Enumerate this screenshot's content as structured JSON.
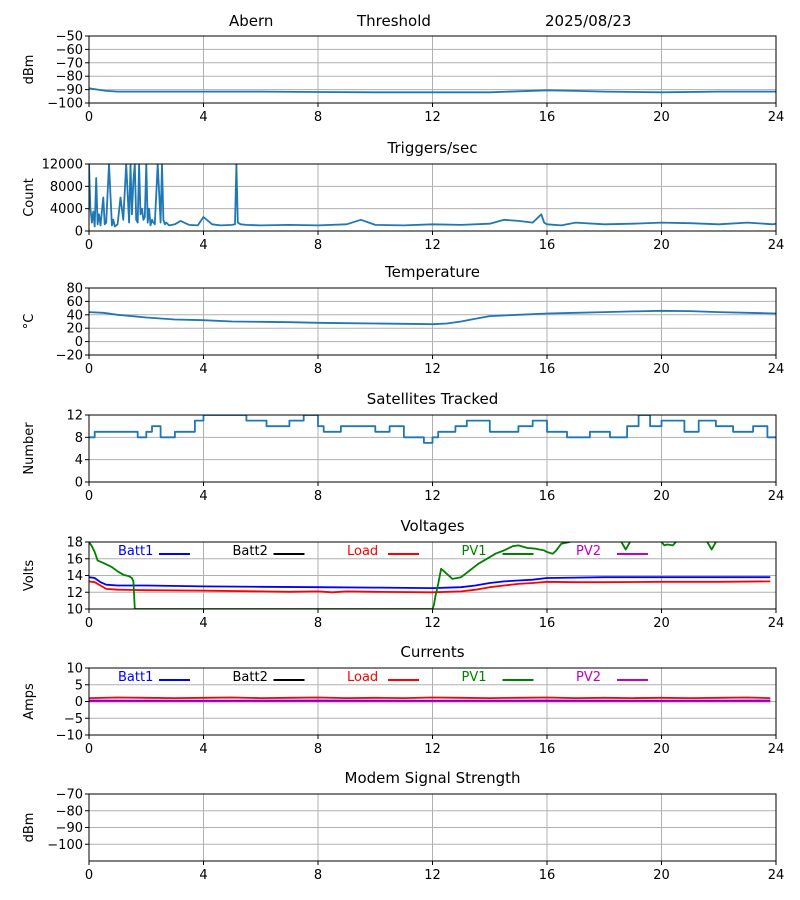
{
  "header": {
    "station": "Abern",
    "mode": "Threshold",
    "date": "2025/08/23"
  },
  "colors": {
    "series_default": "#1f77b4",
    "batt1": "#0000ff",
    "batt2": "#000000",
    "load": "#ff0000",
    "pv1": "#008000",
    "pv2": "#bf00bf",
    "grid": "#b0b0b0"
  },
  "chart_data": [
    {
      "id": "signal",
      "type": "line",
      "title": "",
      "ylabel": "dBm",
      "xlim": [
        0,
        24
      ],
      "xticks": [
        0,
        4,
        8,
        12,
        16,
        20,
        24
      ],
      "ylim": [
        -100,
        -50
      ],
      "yticks": [
        -100,
        -90,
        -80,
        -70,
        -60,
        -50
      ],
      "ytick_labels": [
        "−100",
        "−90",
        "−80",
        "−70",
        "−60",
        "−50"
      ],
      "series": [
        {
          "color_key": "series_default",
          "x": [
            0,
            0.3,
            0.6,
            1,
            2,
            3,
            4,
            6,
            8,
            10,
            12,
            14,
            16,
            17,
            18,
            20,
            22,
            24
          ],
          "y": [
            -89,
            -90,
            -91,
            -91.5,
            -91.5,
            -91.5,
            -91.5,
            -91.5,
            -91.8,
            -92,
            -92,
            -92,
            -90.5,
            -91,
            -91.5,
            -92,
            -91.5,
            -91.5
          ]
        }
      ]
    },
    {
      "id": "triggers",
      "type": "line",
      "title": "Triggers/sec",
      "ylabel": "Count",
      "xlim": [
        0,
        24
      ],
      "xticks": [
        0,
        4,
        8,
        12,
        16,
        20,
        24
      ],
      "ylim": [
        0,
        12000
      ],
      "yticks": [
        0,
        4000,
        8000,
        12000
      ],
      "ytick_labels": [
        "0",
        "4000",
        "8000",
        "12000"
      ],
      "series": [
        {
          "color_key": "series_default",
          "x": [
            0,
            0.05,
            0.1,
            0.15,
            0.2,
            0.25,
            0.3,
            0.35,
            0.4,
            0.5,
            0.55,
            0.6,
            0.7,
            0.8,
            0.85,
            0.9,
            1.0,
            1.1,
            1.2,
            1.3,
            1.4,
            1.45,
            1.5,
            1.55,
            1.6,
            1.65,
            1.7,
            1.75,
            1.8,
            1.85,
            1.9,
            1.95,
            2.0,
            2.05,
            2.1,
            2.15,
            2.2,
            2.25,
            2.3,
            2.4,
            2.5,
            2.55,
            2.6,
            2.65,
            2.7,
            2.8,
            3.0,
            3.2,
            3.5,
            3.8,
            4.0,
            4.3,
            4.6,
            5.0,
            5.1,
            5.15,
            5.2,
            5.3,
            5.5,
            6,
            7,
            8,
            9,
            9.5,
            10,
            11,
            12,
            13,
            14,
            14.5,
            15,
            15.5,
            15.8,
            15.9,
            16,
            16.5,
            17,
            18,
            19,
            20,
            21,
            22,
            23,
            23.9,
            24
          ],
          "y": [
            12000,
            4000,
            1500,
            3500,
            800,
            9500,
            1200,
            3000,
            1000,
            6000,
            1200,
            1500,
            12000,
            1000,
            2000,
            800,
            1200,
            6000,
            2000,
            12000,
            1500,
            12000,
            3000,
            9000,
            12000,
            2000,
            1500,
            12000,
            3000,
            4000,
            2000,
            2500,
            12000,
            1500,
            4000,
            1000,
            2000,
            1500,
            1200,
            12000,
            1500,
            12000,
            2000,
            1200,
            1500,
            1000,
            1200,
            1800,
            1100,
            1000,
            2500,
            1200,
            1000,
            1100,
            1200,
            12000,
            1500,
            1200,
            1100,
            1000,
            1100,
            1000,
            1200,
            2000,
            1100,
            1000,
            1200,
            1100,
            1300,
            2000,
            1800,
            1500,
            3000,
            1500,
            1200,
            1000,
            1500,
            1200,
            1300,
            1500,
            1400,
            1200,
            1500,
            1200,
            1300
          ]
        }
      ]
    },
    {
      "id": "temperature",
      "type": "line",
      "title": "Temperature",
      "ylabel": "°C",
      "xlim": [
        0,
        24
      ],
      "xticks": [
        0,
        4,
        8,
        12,
        16,
        20,
        24
      ],
      "ylim": [
        -20,
        80
      ],
      "yticks": [
        -20,
        0,
        20,
        40,
        60,
        80
      ],
      "ytick_labels": [
        "−20",
        "0",
        "20",
        "40",
        "60",
        "80"
      ],
      "series": [
        {
          "color_key": "series_default",
          "x": [
            0,
            0.5,
            1,
            2,
            3,
            4,
            5,
            6,
            7,
            8,
            9,
            10,
            11,
            12,
            12.5,
            13,
            13.5,
            14,
            15,
            16,
            17,
            18,
            19,
            20,
            21,
            22,
            23,
            24
          ],
          "y": [
            44,
            43,
            40,
            36,
            33,
            32,
            30,
            29.5,
            29,
            28,
            27.5,
            27,
            26.5,
            26,
            27,
            30,
            34,
            38,
            40,
            42,
            43,
            44,
            45,
            46,
            45.5,
            44,
            43,
            42
          ]
        }
      ]
    },
    {
      "id": "satellites",
      "type": "line",
      "title": "Satellites Tracked",
      "ylabel": "Number",
      "xlim": [
        0,
        24
      ],
      "xticks": [
        0,
        4,
        8,
        12,
        16,
        20,
        24
      ],
      "ylim": [
        0,
        12
      ],
      "yticks": [
        0,
        4,
        8,
        12
      ],
      "ytick_labels": [
        "0",
        "4",
        "8",
        "12"
      ],
      "series": [
        {
          "color_key": "series_default",
          "x": [
            0,
            0.2,
            0.2,
            1.7,
            1.7,
            2.0,
            2.0,
            2.2,
            2.2,
            2.5,
            2.5,
            3.0,
            3.0,
            3.7,
            3.7,
            4.0,
            4.0,
            5.5,
            5.5,
            6.2,
            6.2,
            7.0,
            7.0,
            7.5,
            7.5,
            8.0,
            8.0,
            8.2,
            8.2,
            8.8,
            8.8,
            10.0,
            10.0,
            10.5,
            10.5,
            11.0,
            11.0,
            11.7,
            11.7,
            12.0,
            12.0,
            12.2,
            12.2,
            12.8,
            12.8,
            13.2,
            13.2,
            14.0,
            14.0,
            15.0,
            15.0,
            15.5,
            15.5,
            16.0,
            16.0,
            16.7,
            16.7,
            17.5,
            17.5,
            18.2,
            18.2,
            18.8,
            18.8,
            19.2,
            19.2,
            19.6,
            19.6,
            20.0,
            20.0,
            20.8,
            20.8,
            21.3,
            21.3,
            21.9,
            21.9,
            22.5,
            22.5,
            23.2,
            23.2,
            23.7,
            23.7,
            24
          ],
          "y": [
            8,
            8,
            9,
            9,
            8,
            8,
            9,
            9,
            10,
            10,
            8,
            8,
            9,
            9,
            11,
            11,
            12,
            12,
            11,
            11,
            10,
            10,
            11,
            11,
            12,
            12,
            10,
            10,
            9,
            9,
            10,
            10,
            9,
            9,
            10,
            10,
            8,
            8,
            7,
            7,
            8,
            8,
            9,
            9,
            10,
            10,
            11,
            11,
            9,
            9,
            10,
            10,
            11,
            11,
            9,
            9,
            8,
            8,
            9,
            9,
            8,
            8,
            10,
            10,
            12,
            12,
            10,
            10,
            11,
            11,
            9,
            9,
            11,
            11,
            10,
            10,
            9,
            9,
            10,
            10,
            8,
            8
          ]
        }
      ]
    },
    {
      "id": "voltages",
      "type": "line",
      "title": "Voltages",
      "ylabel": "Volts",
      "xlim": [
        0,
        24
      ],
      "xticks": [
        0,
        4,
        8,
        12,
        16,
        20,
        24
      ],
      "ylim": [
        10,
        18
      ],
      "yticks": [
        10,
        12,
        14,
        16,
        18
      ],
      "ytick_labels": [
        "10",
        "12",
        "14",
        "16",
        "18"
      ],
      "legend": [
        "Batt1",
        "Batt2",
        "Load",
        "PV1",
        "PV2"
      ],
      "legend_color_keys": [
        "batt1",
        "batt2",
        "load",
        "pv1",
        "pv2"
      ],
      "series": [
        {
          "name": "Batt1",
          "color_key": "batt1",
          "x": [
            0,
            0.2,
            0.4,
            0.6,
            1,
            2,
            4,
            6,
            8,
            10,
            12,
            13,
            13.5,
            14,
            14.5,
            15,
            15.5,
            16,
            17,
            18,
            20,
            22,
            23.8
          ],
          "y": [
            13.8,
            13.7,
            13.2,
            12.9,
            12.8,
            12.8,
            12.7,
            12.65,
            12.6,
            12.55,
            12.5,
            12.6,
            12.8,
            13.1,
            13.3,
            13.4,
            13.5,
            13.7,
            13.75,
            13.8,
            13.8,
            13.8,
            13.8
          ]
        },
        {
          "name": "Load",
          "color_key": "load",
          "x": [
            0,
            0.2,
            0.4,
            0.6,
            1,
            2,
            4,
            6,
            7,
            8,
            8.5,
            9,
            10,
            12,
            13,
            13.5,
            14,
            14.5,
            15,
            15.5,
            16,
            17,
            18,
            20,
            22,
            23.8
          ],
          "y": [
            13.3,
            13.2,
            12.8,
            12.4,
            12.3,
            12.25,
            12.2,
            12.1,
            12.05,
            12.1,
            12.0,
            12.1,
            12.05,
            12.0,
            12.1,
            12.3,
            12.6,
            12.8,
            13.0,
            13.1,
            13.25,
            13.2,
            13.2,
            13.25,
            13.25,
            13.3
          ]
        },
        {
          "name": "PV1",
          "color_key": "pv1",
          "x": [
            0,
            0.1,
            0.2,
            0.3,
            0.5,
            0.8,
            1.0,
            1.2,
            1.4,
            1.5,
            1.55,
            1.6,
            12.0,
            12.05,
            12.1,
            12.2,
            12.3,
            12.5,
            12.7,
            13.0,
            13.3,
            13.6,
            13.9,
            14.2,
            14.5,
            14.8,
            15.0,
            15.3,
            15.6,
            15.9,
            16.0,
            16.2,
            16.3,
            16.5,
            16.8
          ],
          "y": [
            18.0,
            17.5,
            16.8,
            15.8,
            15.5,
            15.0,
            14.5,
            14.1,
            13.9,
            13.7,
            13.3,
            10.0,
            10.0,
            10.5,
            11.5,
            13.0,
            14.8,
            14.2,
            13.6,
            13.8,
            14.6,
            15.4,
            16.0,
            16.6,
            17.0,
            17.5,
            17.6,
            17.3,
            17.2,
            17.0,
            16.8,
            16.6,
            16.9,
            17.8,
            18.0
          ]
        },
        {
          "name": "PV1",
          "color_key": "pv1",
          "x": [
            18.6,
            18.75,
            18.9
          ],
          "y": [
            18.0,
            17.1,
            18.0
          ]
        },
        {
          "name": "PV1",
          "color_key": "pv1",
          "x": [
            20.0,
            20.1,
            20.2,
            20.4,
            20.5
          ],
          "y": [
            18.0,
            17.6,
            17.7,
            17.6,
            18.0
          ]
        },
        {
          "name": "PV1",
          "color_key": "pv1",
          "x": [
            21.6,
            21.75,
            21.9
          ],
          "y": [
            18.0,
            17.1,
            18.0
          ]
        }
      ]
    },
    {
      "id": "currents",
      "type": "line",
      "title": "Currents",
      "ylabel": "Amps",
      "xlim": [
        0,
        24
      ],
      "xticks": [
        0,
        4,
        8,
        12,
        16,
        20,
        24
      ],
      "ylim": [
        -10,
        10
      ],
      "yticks": [
        -10,
        -5,
        0,
        5,
        10
      ],
      "ytick_labels": [
        "−10",
        "−5",
        "0",
        "5",
        "10"
      ],
      "legend": [
        "Batt1",
        "Batt2",
        "Load",
        "PV1",
        "PV2"
      ],
      "legend_color_keys": [
        "batt1",
        "batt2",
        "load",
        "pv1",
        "pv2"
      ],
      "series": [
        {
          "name": "Load",
          "color_key": "load",
          "x": [
            0,
            1,
            2,
            3,
            4,
            5,
            6,
            7,
            8,
            9,
            10,
            11,
            12,
            13,
            14,
            15,
            16,
            17,
            18,
            19,
            20,
            21,
            22,
            23,
            23.8
          ],
          "y": [
            1.0,
            1.2,
            1.1,
            1.0,
            1.1,
            1.2,
            1.0,
            1.1,
            1.2,
            1.0,
            1.1,
            1.0,
            1.2,
            1.1,
            1.0,
            1.1,
            1.2,
            1.0,
            1.1,
            1.0,
            1.1,
            1.0,
            1.1,
            1.2,
            1.0
          ]
        },
        {
          "name": "Batt1",
          "color_key": "batt1",
          "x": [
            0,
            4,
            8,
            12,
            16,
            20,
            23.8
          ],
          "y": [
            0.3,
            0.2,
            0.3,
            0.2,
            0.3,
            0.2,
            0.3
          ]
        },
        {
          "name": "PV2",
          "color_key": "pv2",
          "x": [
            0,
            4,
            8,
            12,
            16,
            20,
            23.8
          ],
          "y": [
            0.05,
            0.05,
            0.05,
            0.05,
            0.05,
            0.05,
            0.05
          ]
        }
      ]
    },
    {
      "id": "modem",
      "type": "line",
      "title": "Modem Signal Strength",
      "ylabel": "dBm",
      "xlim": [
        0,
        24
      ],
      "xticks": [
        0,
        4,
        8,
        12,
        16,
        20,
        24
      ],
      "ylim": [
        -110,
        -70
      ],
      "yticks": [
        -100,
        -90,
        -80,
        -70
      ],
      "ytick_labels": [
        "−100",
        "−90",
        "−80",
        "−70"
      ],
      "series": []
    }
  ]
}
